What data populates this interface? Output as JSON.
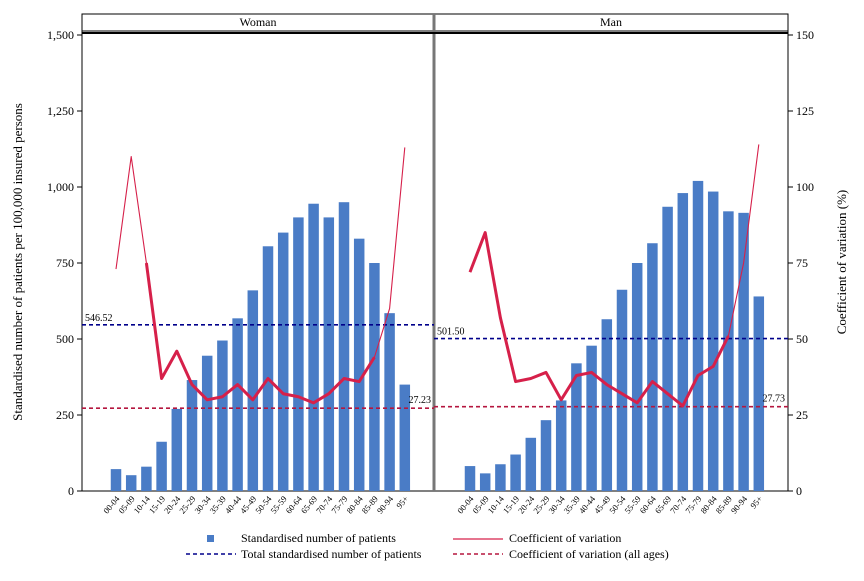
{
  "chart_data": {
    "type": "bar",
    "ylabel_left": "Standardised number of patients per 100,000 insured persons",
    "ylabel_right": "Coefficient of variation (%)",
    "ylim_left": [
      0,
      1500
    ],
    "ylim_right": [
      0,
      150
    ],
    "yticks_left": [
      "0",
      "250",
      "500",
      "750",
      "1,000",
      "1,250",
      "1,500"
    ],
    "yticks_right": [
      "0",
      "25",
      "50",
      "75",
      "100",
      "125",
      "150"
    ],
    "categories": [
      "00-04",
      "05-09",
      "10-14",
      "15-19",
      "20-24",
      "25-29",
      "30-34",
      "35-39",
      "40-44",
      "45-49",
      "50-54",
      "55-59",
      "60-64",
      "65-69",
      "70-74",
      "75-79",
      "80-84",
      "85-89",
      "90-94",
      "95+"
    ],
    "legend": {
      "bars": "Standardised number of patients",
      "cv": "Coefficient of variation",
      "total": "Total standardised number of patients",
      "cv_all": "Coefficient of variation (all ages)"
    },
    "colors": {
      "bar": "#4a7cc6",
      "cv": "#d6204a",
      "total": "#00008b",
      "cv_all": "#b5163f"
    },
    "panels": [
      {
        "name": "Woman",
        "bars": [
          72,
          52,
          80,
          162,
          270,
          365,
          445,
          495,
          568,
          660,
          805,
          850,
          900,
          945,
          900,
          950,
          830,
          750,
          585,
          350
        ],
        "cv": [
          73,
          110,
          75,
          37,
          46,
          35,
          30,
          31,
          35,
          30,
          37,
          32,
          31,
          29,
          32,
          37,
          36,
          44,
          60,
          113
        ],
        "cv_bold_from": 2,
        "cv_bold_to": 17,
        "total": 546.52,
        "total_label": "546.52",
        "cv_all": 27.23,
        "cv_all_label": "27.23"
      },
      {
        "name": "Man",
        "bars": [
          82,
          58,
          88,
          120,
          175,
          233,
          298,
          420,
          478,
          565,
          662,
          750,
          815,
          935,
          980,
          1020,
          985,
          920,
          915,
          640
        ],
        "cv": [
          72,
          85,
          57,
          36,
          37,
          39,
          30,
          38,
          39,
          35,
          32,
          29,
          36,
          32,
          28,
          38,
          41,
          51,
          75,
          114
        ],
        "cv_bold_from": 0,
        "cv_bold_to": 17,
        "total": 501.5,
        "total_label": "501.50",
        "cv_all": 27.73,
        "cv_all_label": "27.73"
      }
    ]
  }
}
